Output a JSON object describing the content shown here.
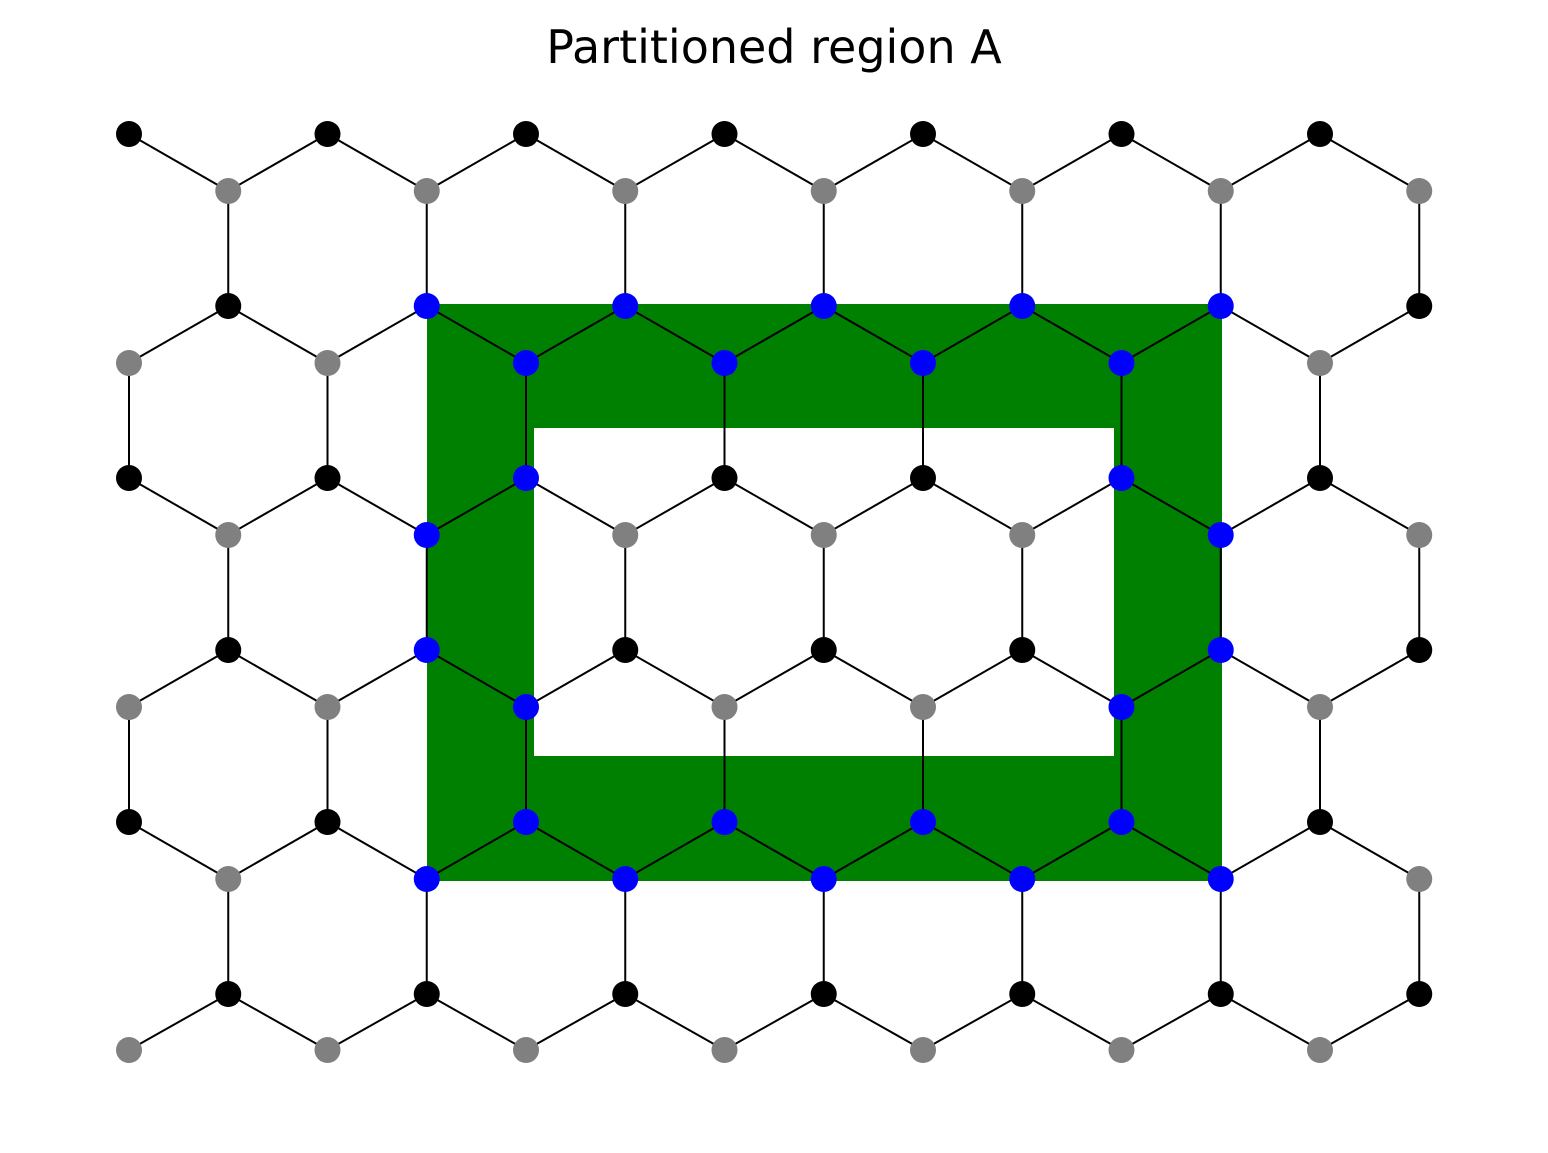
{
  "title": "Partitioned region A",
  "colors": {
    "region_fill": "#008000",
    "sublattice_a": "#000000",
    "sublattice_b": "#808080",
    "boundary_site": "#0000ff",
    "bond": "#000000",
    "background": "#ffffff"
  },
  "lattice": {
    "type": "honeycomb",
    "unit_cells_x": 7,
    "unit_cell_rows": 4
  },
  "region": {
    "name": "A",
    "shape": "rectangular ring"
  }
}
